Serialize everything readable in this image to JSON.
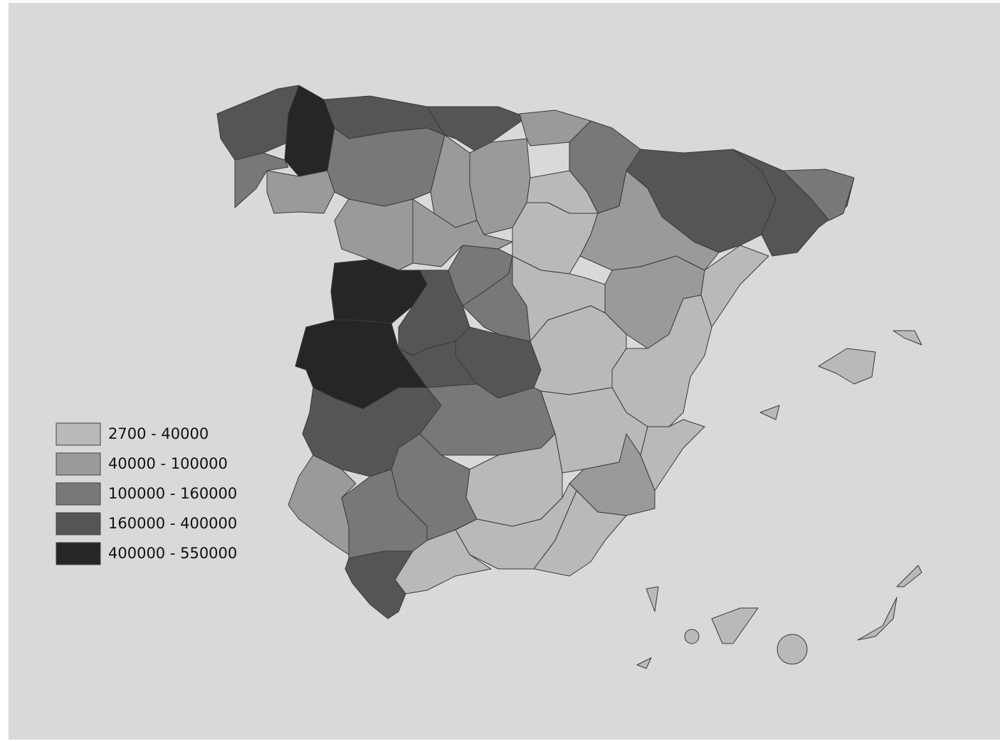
{
  "legend": {
    "items": [
      {
        "label": "2700 - 40000",
        "color": "#b9b9b9"
      },
      {
        "label": "40000 - 100000",
        "color": "#9a9a9a"
      },
      {
        "label": "100000 - 160000",
        "color": "#787878"
      },
      {
        "label": "160000 - 400000",
        "color": "#555555"
      },
      {
        "label": "400000 - 550000",
        "color": "#262626"
      }
    ]
  }
}
